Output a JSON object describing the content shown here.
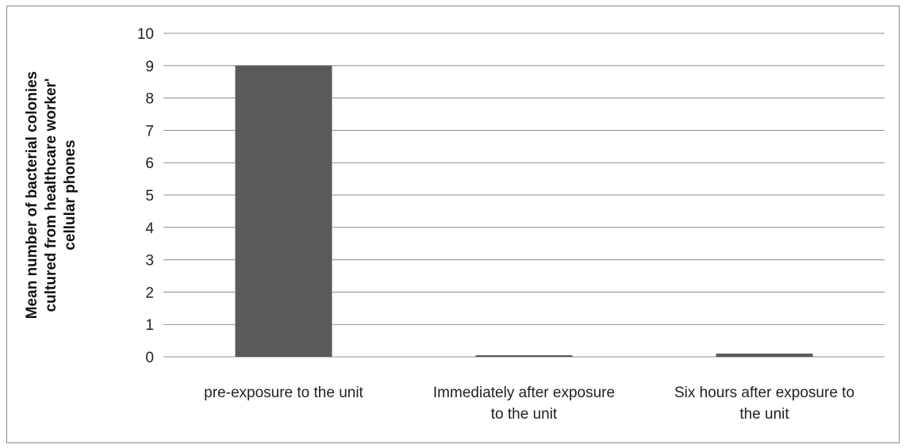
{
  "chart_data": {
    "type": "bar",
    "categories": [
      [
        "pre-exposure to the unit"
      ],
      [
        "Immediately after exposure",
        "to the unit"
      ],
      [
        "Six hours after exposure to",
        "the unit"
      ]
    ],
    "values": [
      9,
      0.05,
      0.1
    ],
    "ylabel": [
      "Mean number of bacterial colonies",
      "cultured from healthcare worker'",
      "cellular phones"
    ],
    "ylim": [
      0,
      10
    ],
    "yticks": [
      0,
      1,
      2,
      3,
      4,
      5,
      6,
      7,
      8,
      9,
      10
    ],
    "grid": true,
    "bar_color": "#595959",
    "gridline_color": "#8c8c8c"
  }
}
